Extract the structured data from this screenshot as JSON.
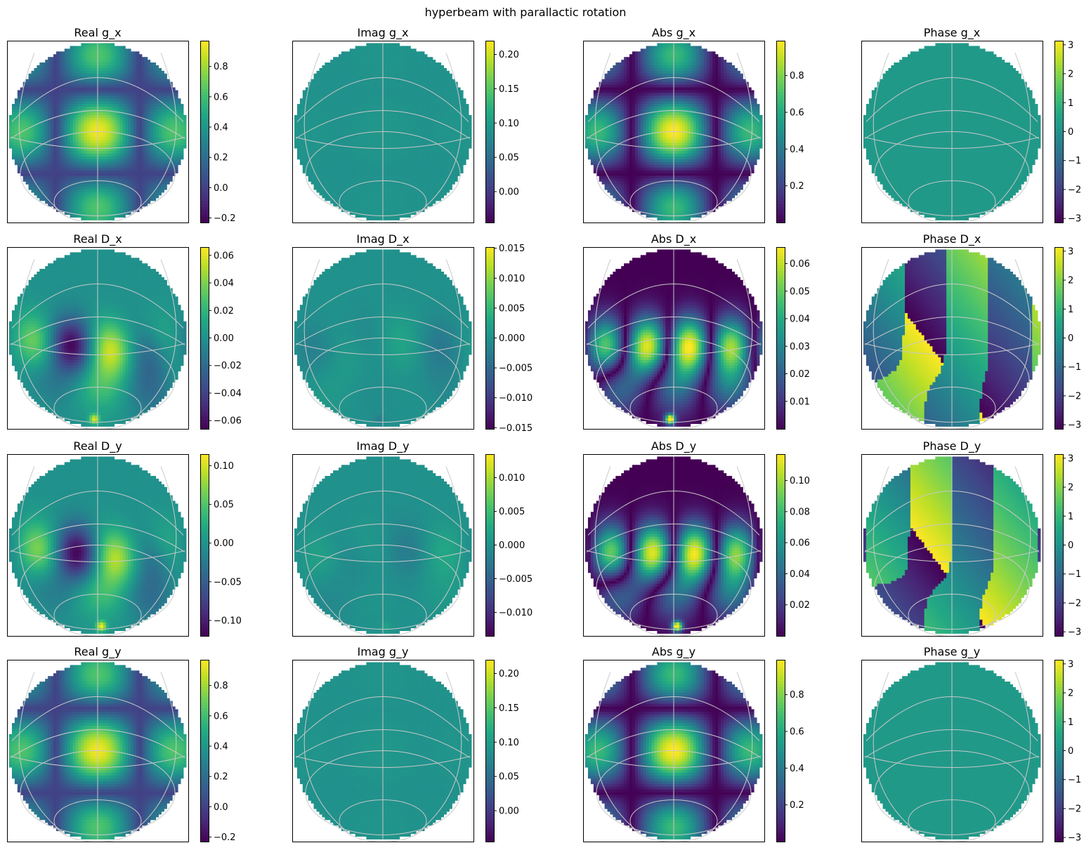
{
  "figure": {
    "title": "hyperbeam with parallactic rotation"
  },
  "colormap": [
    "#440154",
    "#482475",
    "#414487",
    "#355f8d",
    "#2a788e",
    "#21918c",
    "#22a884",
    "#44bf70",
    "#7ad151",
    "#bddf26",
    "#fde725"
  ],
  "chart_data": [
    {
      "type": "heatmap",
      "title": "Real g_x",
      "pattern": "g",
      "comp": "x",
      "kind": "real",
      "vmin": -0.23,
      "vmax": 0.97,
      "colorbar_ticks": [
        -0.2,
        0.0,
        0.2,
        0.4,
        0.6,
        0.8
      ],
      "colorbar_labels": [
        "−0.2",
        "0.0",
        "0.2",
        "0.4",
        "0.6",
        "0.8"
      ]
    },
    {
      "type": "heatmap",
      "title": "Imag g_x",
      "pattern": "g",
      "comp": "x",
      "kind": "imag",
      "vmin": -0.045,
      "vmax": 0.22,
      "colorbar_ticks": [
        0.0,
        0.05,
        0.1,
        0.15,
        0.2
      ],
      "colorbar_labels": [
        "0.00",
        "0.05",
        "0.10",
        "0.15",
        "0.20"
      ]
    },
    {
      "type": "heatmap",
      "title": "Abs g_x",
      "pattern": "g",
      "comp": "x",
      "kind": "abs",
      "vmin": 0.0,
      "vmax": 0.99,
      "colorbar_ticks": [
        0.2,
        0.4,
        0.6,
        0.8
      ],
      "colorbar_labels": [
        "0.2",
        "0.4",
        "0.6",
        "0.8"
      ]
    },
    {
      "type": "heatmap",
      "title": "Phase g_x",
      "pattern": "g",
      "comp": "x",
      "kind": "phase",
      "vmin": -3.14159,
      "vmax": 3.14159,
      "colorbar_ticks": [
        -3,
        -2,
        -1,
        0,
        1,
        2,
        3
      ],
      "colorbar_labels": [
        "−3",
        "−2",
        "−1",
        "0",
        "1",
        "2",
        "3"
      ]
    },
    {
      "type": "heatmap",
      "title": "Real D_x",
      "pattern": "d",
      "comp": "x",
      "kind": "real",
      "vmin": -0.066,
      "vmax": 0.066,
      "colorbar_ticks": [
        -0.06,
        -0.04,
        -0.02,
        0.0,
        0.02,
        0.04,
        0.06
      ],
      "colorbar_labels": [
        "−0.06",
        "−0.04",
        "−0.02",
        "0.00",
        "0.02",
        "0.04",
        "0.06"
      ]
    },
    {
      "type": "heatmap",
      "title": "Imag D_x",
      "pattern": "d",
      "comp": "x",
      "kind": "imag",
      "vmin": -0.0152,
      "vmax": 0.0152,
      "colorbar_ticks": [
        -0.015,
        -0.01,
        -0.005,
        0.0,
        0.005,
        0.01,
        0.015
      ],
      "colorbar_labels": [
        "−0.015",
        "−0.010",
        "−0.005",
        "0.000",
        "0.005",
        "0.010",
        "0.015"
      ]
    },
    {
      "type": "heatmap",
      "title": "Abs D_x",
      "pattern": "d",
      "comp": "x",
      "kind": "abs",
      "vmin": 0.0,
      "vmax": 0.066,
      "colorbar_ticks": [
        0.01,
        0.02,
        0.03,
        0.04,
        0.05,
        0.06
      ],
      "colorbar_labels": [
        "0.01",
        "0.02",
        "0.03",
        "0.04",
        "0.05",
        "0.06"
      ]
    },
    {
      "type": "heatmap",
      "title": "Phase D_x",
      "pattern": "d",
      "comp": "x",
      "kind": "phase",
      "vmin": -3.14159,
      "vmax": 3.14159,
      "colorbar_ticks": [
        -3,
        -2,
        -1,
        0,
        1,
        2,
        3
      ],
      "colorbar_labels": [
        "−3",
        "−2",
        "−1",
        "0",
        "1",
        "2",
        "3"
      ]
    },
    {
      "type": "heatmap",
      "title": "Real D_y",
      "pattern": "d",
      "comp": "y",
      "kind": "real",
      "vmin": -0.12,
      "vmax": 0.115,
      "colorbar_ticks": [
        -0.1,
        -0.05,
        0.0,
        0.05,
        0.1
      ],
      "colorbar_labels": [
        "−0.10",
        "−0.05",
        "0.00",
        "0.05",
        "0.10"
      ]
    },
    {
      "type": "heatmap",
      "title": "Imag D_y",
      "pattern": "d",
      "comp": "y",
      "kind": "imag",
      "vmin": -0.0135,
      "vmax": 0.0135,
      "colorbar_ticks": [
        -0.01,
        -0.005,
        0.0,
        0.005,
        0.01
      ],
      "colorbar_labels": [
        "−0.010",
        "−0.005",
        "0.000",
        "0.005",
        "0.010"
      ]
    },
    {
      "type": "heatmap",
      "title": "Abs D_y",
      "pattern": "d",
      "comp": "y",
      "kind": "abs",
      "vmin": 0.0,
      "vmax": 0.117,
      "colorbar_ticks": [
        0.02,
        0.04,
        0.06,
        0.08,
        0.1
      ],
      "colorbar_labels": [
        "0.02",
        "0.04",
        "0.06",
        "0.08",
        "0.10"
      ]
    },
    {
      "type": "heatmap",
      "title": "Phase D_y",
      "pattern": "d",
      "comp": "y",
      "kind": "phase",
      "vmin": -3.14159,
      "vmax": 3.14159,
      "colorbar_ticks": [
        -3,
        -2,
        -1,
        0,
        1,
        2,
        3
      ],
      "colorbar_labels": [
        "−3",
        "−2",
        "−1",
        "0",
        "1",
        "2",
        "3"
      ]
    },
    {
      "type": "heatmap",
      "title": "Real g_y",
      "pattern": "g",
      "comp": "y",
      "kind": "real",
      "vmin": -0.23,
      "vmax": 0.97,
      "colorbar_ticks": [
        -0.2,
        0.0,
        0.2,
        0.4,
        0.6,
        0.8
      ],
      "colorbar_labels": [
        "−0.2",
        "0.0",
        "0.2",
        "0.4",
        "0.6",
        "0.8"
      ]
    },
    {
      "type": "heatmap",
      "title": "Imag g_y",
      "pattern": "g",
      "comp": "y",
      "kind": "imag",
      "vmin": -0.045,
      "vmax": 0.22,
      "colorbar_ticks": [
        0.0,
        0.05,
        0.1,
        0.15,
        0.2
      ],
      "colorbar_labels": [
        "0.00",
        "0.05",
        "0.10",
        "0.15",
        "0.20"
      ]
    },
    {
      "type": "heatmap",
      "title": "Abs g_y",
      "pattern": "g",
      "comp": "y",
      "kind": "abs",
      "vmin": 0.0,
      "vmax": 0.99,
      "colorbar_ticks": [
        0.2,
        0.4,
        0.6,
        0.8
      ],
      "colorbar_labels": [
        "0.2",
        "0.4",
        "0.6",
        "0.8"
      ]
    },
    {
      "type": "heatmap",
      "title": "Phase g_y",
      "pattern": "g",
      "comp": "y",
      "kind": "phase",
      "vmin": -3.14159,
      "vmax": 3.14159,
      "colorbar_ticks": [
        -3,
        -2,
        -1,
        0,
        1,
        2,
        3
      ],
      "colorbar_labels": [
        "−3",
        "−2",
        "−1",
        "0",
        "1",
        "2",
        "3"
      ]
    }
  ]
}
